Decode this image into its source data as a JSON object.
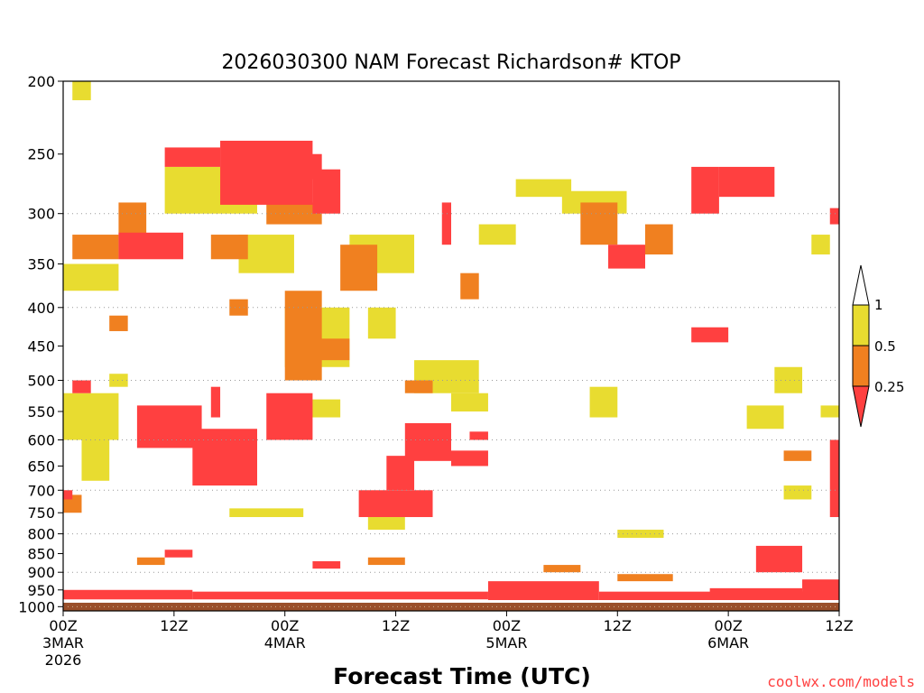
{
  "chart_data": {
    "type": "heatmap",
    "title": "2026030300 NAM Forecast Richardson# KTOP",
    "xlabel": "Forecast Time (UTC)",
    "ylabel": "",
    "credit": "coolwx.com/models",
    "x_unit": "forecast hour",
    "xlim": [
      0,
      84
    ],
    "y_unit": "pressure (hPa)",
    "ylim": [
      200,
      1013
    ],
    "y_scale": "log-pressure",
    "y_ticks": [
      200,
      250,
      300,
      350,
      400,
      450,
      500,
      550,
      600,
      650,
      700,
      750,
      800,
      850,
      900,
      950,
      1000
    ],
    "y_tick_labels": [
      "200",
      "250",
      "300",
      "350",
      "400",
      "450",
      "500",
      "550",
      "600",
      "650",
      "700",
      "750",
      "800",
      "850",
      "900",
      "950",
      "1000"
    ],
    "x_ticks": [
      {
        "hour": 0,
        "lines": [
          "00Z",
          "3MAR",
          "2026"
        ]
      },
      {
        "hour": 12,
        "lines": [
          "12Z"
        ]
      },
      {
        "hour": 24,
        "lines": [
          "00Z",
          "4MAR"
        ]
      },
      {
        "hour": 36,
        "lines": [
          "12Z"
        ]
      },
      {
        "hour": 48,
        "lines": [
          "00Z",
          "5MAR"
        ]
      },
      {
        "hour": 60,
        "lines": [
          "12Z"
        ]
      },
      {
        "hour": 72,
        "lines": [
          "00Z",
          "6MAR"
        ]
      },
      {
        "hour": 84,
        "lines": [
          "12Z"
        ]
      }
    ],
    "dotted_gridlines_at": [
      300,
      400,
      500,
      600,
      700,
      800,
      900,
      1000
    ],
    "surface_layer": {
      "top_hPa": 988,
      "color": "#9a4f2a"
    },
    "legend": {
      "placement": "right",
      "colors": {
        "low": "#ff4040",
        "mid": "#f08020",
        "high": "#e8dc30",
        "top": "#ffffff"
      },
      "labels": [
        "1",
        "0.5",
        "0.25"
      ],
      "bins": [
        {
          "label": "< 0.25",
          "key": "low"
        },
        {
          "label": "0.25 - 0.5",
          "key": "mid"
        },
        {
          "label": "0.5 - 1",
          "key": "high"
        },
        {
          "label": "> 1",
          "key": "top"
        }
      ]
    },
    "series": [
      {
        "name": "Ri < 0.25",
        "key": "low",
        "regions": [
          {
            "h": [
              17,
              27
            ],
            "p": [
              240,
              292
            ]
          },
          {
            "h": [
              27,
              30
            ],
            "p": [
              262,
              300
            ]
          },
          {
            "h": [
              6,
              13
            ],
            "p": [
              318,
              345
            ]
          },
          {
            "h": [
              11,
              17
            ],
            "p": [
              245,
              260
            ]
          },
          {
            "h": [
              23,
              28
            ],
            "p": [
              250,
              270
            ]
          },
          {
            "h": [
              8,
              15
            ],
            "p": [
              540,
              615
            ]
          },
          {
            "h": [
              14,
              21
            ],
            "p": [
              580,
              690
            ]
          },
          {
            "h": [
              22,
              27
            ],
            "p": [
              520,
              600
            ]
          },
          {
            "h": [
              32,
              40
            ],
            "p": [
              700,
              760
            ]
          },
          {
            "h": [
              37,
              42
            ],
            "p": [
              570,
              640
            ]
          },
          {
            "h": [
              44,
              46
            ],
            "p": [
              585,
              600
            ]
          },
          {
            "h": [
              68,
              71
            ],
            "p": [
              260,
              300
            ]
          },
          {
            "h": [
              71,
              77
            ],
            "p": [
              260,
              285
            ]
          },
          {
            "h": [
              59,
              63
            ],
            "p": [
              330,
              355
            ]
          },
          {
            "h": [
              68,
              72
            ],
            "p": [
              425,
              445
            ]
          },
          {
            "h": [
              35,
              38
            ],
            "p": [
              630,
              700
            ]
          },
          {
            "h": [
              83,
              84
            ],
            "p": [
              600,
              760
            ]
          },
          {
            "h": [
              80,
              84
            ],
            "p": [
              920,
              960
            ]
          },
          {
            "h": [
              0,
              14
            ],
            "p": [
              950,
              978
            ]
          },
          {
            "h": [
              14,
              46
            ],
            "p": [
              955,
              978
            ]
          },
          {
            "h": [
              46,
              58
            ],
            "p": [
              925,
              980
            ]
          },
          {
            "h": [
              58,
              84
            ],
            "p": [
              955,
              980
            ]
          },
          {
            "h": [
              70,
              80
            ],
            "p": [
              945,
              960
            ]
          },
          {
            "h": [
              0,
              1
            ],
            "p": [
              700,
              720
            ]
          },
          {
            "h": [
              1,
              3
            ],
            "p": [
              500,
              520
            ]
          },
          {
            "h": [
              16,
              17
            ],
            "p": [
              510,
              560
            ]
          },
          {
            "h": [
              42,
              46
            ],
            "p": [
              620,
              650
            ]
          },
          {
            "h": [
              41,
              42
            ],
            "p": [
              290,
              330
            ]
          },
          {
            "h": [
              75,
              80
            ],
            "p": [
              830,
              900
            ]
          },
          {
            "h": [
              83,
              84
            ],
            "p": [
              295,
              310
            ]
          },
          {
            "h": [
              27,
              30
            ],
            "p": [
              870,
              890
            ]
          },
          {
            "h": [
              11,
              14
            ],
            "p": [
              840,
              860
            ]
          }
        ]
      },
      {
        "name": "0.25 <= Ri < 0.5",
        "key": "mid",
        "regions": [
          {
            "h": [
              1,
              6
            ],
            "p": [
              320,
              345
            ]
          },
          {
            "h": [
              6,
              9
            ],
            "p": [
              290,
              320
            ]
          },
          {
            "h": [
              16,
              20
            ],
            "p": [
              320,
              345
            ]
          },
          {
            "h": [
              22,
              28
            ],
            "p": [
              290,
              310
            ]
          },
          {
            "h": [
              24,
              28
            ],
            "p": [
              380,
              500
            ]
          },
          {
            "h": [
              27,
              31
            ],
            "p": [
              440,
              470
            ]
          },
          {
            "h": [
              30,
              34
            ],
            "p": [
              330,
              380
            ]
          },
          {
            "h": [
              56,
              60
            ],
            "p": [
              290,
              330
            ]
          },
          {
            "h": [
              63,
              66
            ],
            "p": [
              310,
              340
            ]
          },
          {
            "h": [
              0,
              2
            ],
            "p": [
              710,
              750
            ]
          },
          {
            "h": [
              5,
              7
            ],
            "p": [
              410,
              430
            ]
          },
          {
            "h": [
              18,
              20
            ],
            "p": [
              390,
              410
            ]
          },
          {
            "h": [
              37,
              40
            ],
            "p": [
              500,
              520
            ]
          },
          {
            "h": [
              43,
              45
            ],
            "p": [
              360,
              390
            ]
          },
          {
            "h": [
              8,
              11
            ],
            "p": [
              860,
              880
            ]
          },
          {
            "h": [
              33,
              37
            ],
            "p": [
              860,
              880
            ]
          },
          {
            "h": [
              52,
              56
            ],
            "p": [
              880,
              900
            ]
          },
          {
            "h": [
              60,
              66
            ],
            "p": [
              905,
              925
            ]
          },
          {
            "h": [
              78,
              81
            ],
            "p": [
              620,
              640
            ]
          }
        ]
      },
      {
        "name": "0.5 <= Ri < 1",
        "key": "high",
        "regions": [
          {
            "h": [
              1,
              3
            ],
            "p": [
              200,
              212
            ]
          },
          {
            "h": [
              0,
              6
            ],
            "p": [
              350,
              380
            ]
          },
          {
            "h": [
              0,
              6
            ],
            "p": [
              520,
              600
            ]
          },
          {
            "h": [
              2,
              5
            ],
            "p": [
              600,
              680
            ]
          },
          {
            "h": [
              11,
              21
            ],
            "p": [
              260,
              300
            ]
          },
          {
            "h": [
              19,
              25
            ],
            "p": [
              320,
              360
            ]
          },
          {
            "h": [
              24,
              31
            ],
            "p": [
              400,
              480
            ]
          },
          {
            "h": [
              31,
              38
            ],
            "p": [
              320,
              360
            ]
          },
          {
            "h": [
              33,
              36
            ],
            "p": [
              400,
              440
            ]
          },
          {
            "h": [
              38,
              45
            ],
            "p": [
              470,
              520
            ]
          },
          {
            "h": [
              45,
              49
            ],
            "p": [
              310,
              330
            ]
          },
          {
            "h": [
              49,
              55
            ],
            "p": [
              270,
              285
            ]
          },
          {
            "h": [
              54,
              61
            ],
            "p": [
              280,
              300
            ]
          },
          {
            "h": [
              57,
              60
            ],
            "p": [
              510,
              560
            ]
          },
          {
            "h": [
              74,
              78
            ],
            "p": [
              540,
              580
            ]
          },
          {
            "h": [
              77,
              80
            ],
            "p": [
              480,
              520
            ]
          },
          {
            "h": [
              81,
              83
            ],
            "p": [
              320,
              340
            ]
          },
          {
            "h": [
              18,
              26
            ],
            "p": [
              740,
              760
            ]
          },
          {
            "h": [
              42,
              46
            ],
            "p": [
              520,
              550
            ]
          },
          {
            "h": [
              60,
              65
            ],
            "p": [
              790,
              810
            ]
          },
          {
            "h": [
              82,
              84
            ],
            "p": [
              540,
              560
            ]
          },
          {
            "h": [
              33,
              37
            ],
            "p": [
              760,
              790
            ]
          },
          {
            "h": [
              5,
              7
            ],
            "p": [
              490,
              510
            ]
          },
          {
            "h": [
              24,
              30
            ],
            "p": [
              530,
              560
            ]
          },
          {
            "h": [
              78,
              81
            ],
            "p": [
              690,
              720
            ]
          }
        ]
      }
    ]
  }
}
